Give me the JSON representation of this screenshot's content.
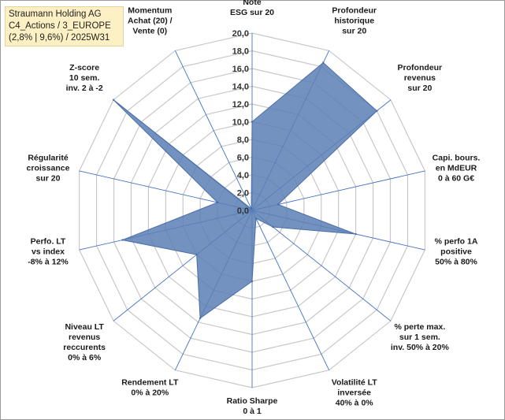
{
  "title_box": {
    "line1": "Straumann Holding AG",
    "line2": "C4_Actions / 3_EUROPE",
    "line3": "(2,8% | 9,6%) / 2025W31"
  },
  "chart_data": {
    "type": "radar",
    "rmin": 0,
    "rmax": 20,
    "ticks": [
      "0,0",
      "2,0",
      "4,0",
      "6,0",
      "8,0",
      "10,0",
      "12,0",
      "14,0",
      "16,0",
      "18,0",
      "20,0"
    ],
    "categories": [
      [
        "Note",
        "ESG sur 20"
      ],
      [
        "Profondeur",
        "historique",
        "sur 20"
      ],
      [
        "Profondeur",
        "revenus",
        "sur 20"
      ],
      [
        "Capi. bours.",
        "en MdEUR",
        "0 à 60 G€"
      ],
      [
        "% perfo 1A",
        "positive",
        "50% à 80%"
      ],
      [
        "% perte max.",
        "sur 1 sem.",
        "inv. 50% à 20%"
      ],
      [
        "Volatilité LT",
        "inversée",
        "40% à 0%"
      ],
      [
        "Ratio Sharpe",
        "0 à 1"
      ],
      [
        "Rendement LT",
        "0% à 20%"
      ],
      [
        "Niveau LT",
        "revenus",
        "reccurents",
        "0% à 6%"
      ],
      [
        "Perfo. LT",
        "vs index",
        "-8% à 12%"
      ],
      [
        "Régularité",
        "croissance",
        "sur 20"
      ],
      [
        "Z-score",
        "10 sem.",
        "inv. 2 à -2"
      ],
      [
        "Momentum",
        "Achat (20) /",
        "Vente (0)"
      ]
    ],
    "values": [
      10,
      18.5,
      18,
      3,
      12,
      3,
      1,
      8,
      13.5,
      8,
      15,
      4,
      20,
      0.2
    ],
    "series_color": "#5b7fb5",
    "grid": true
  },
  "colors": {
    "grid": "#c8c8c8",
    "spoke": "#4472c4",
    "fill": "#5b7fb5",
    "title_bg": "#fdf0c4"
  }
}
